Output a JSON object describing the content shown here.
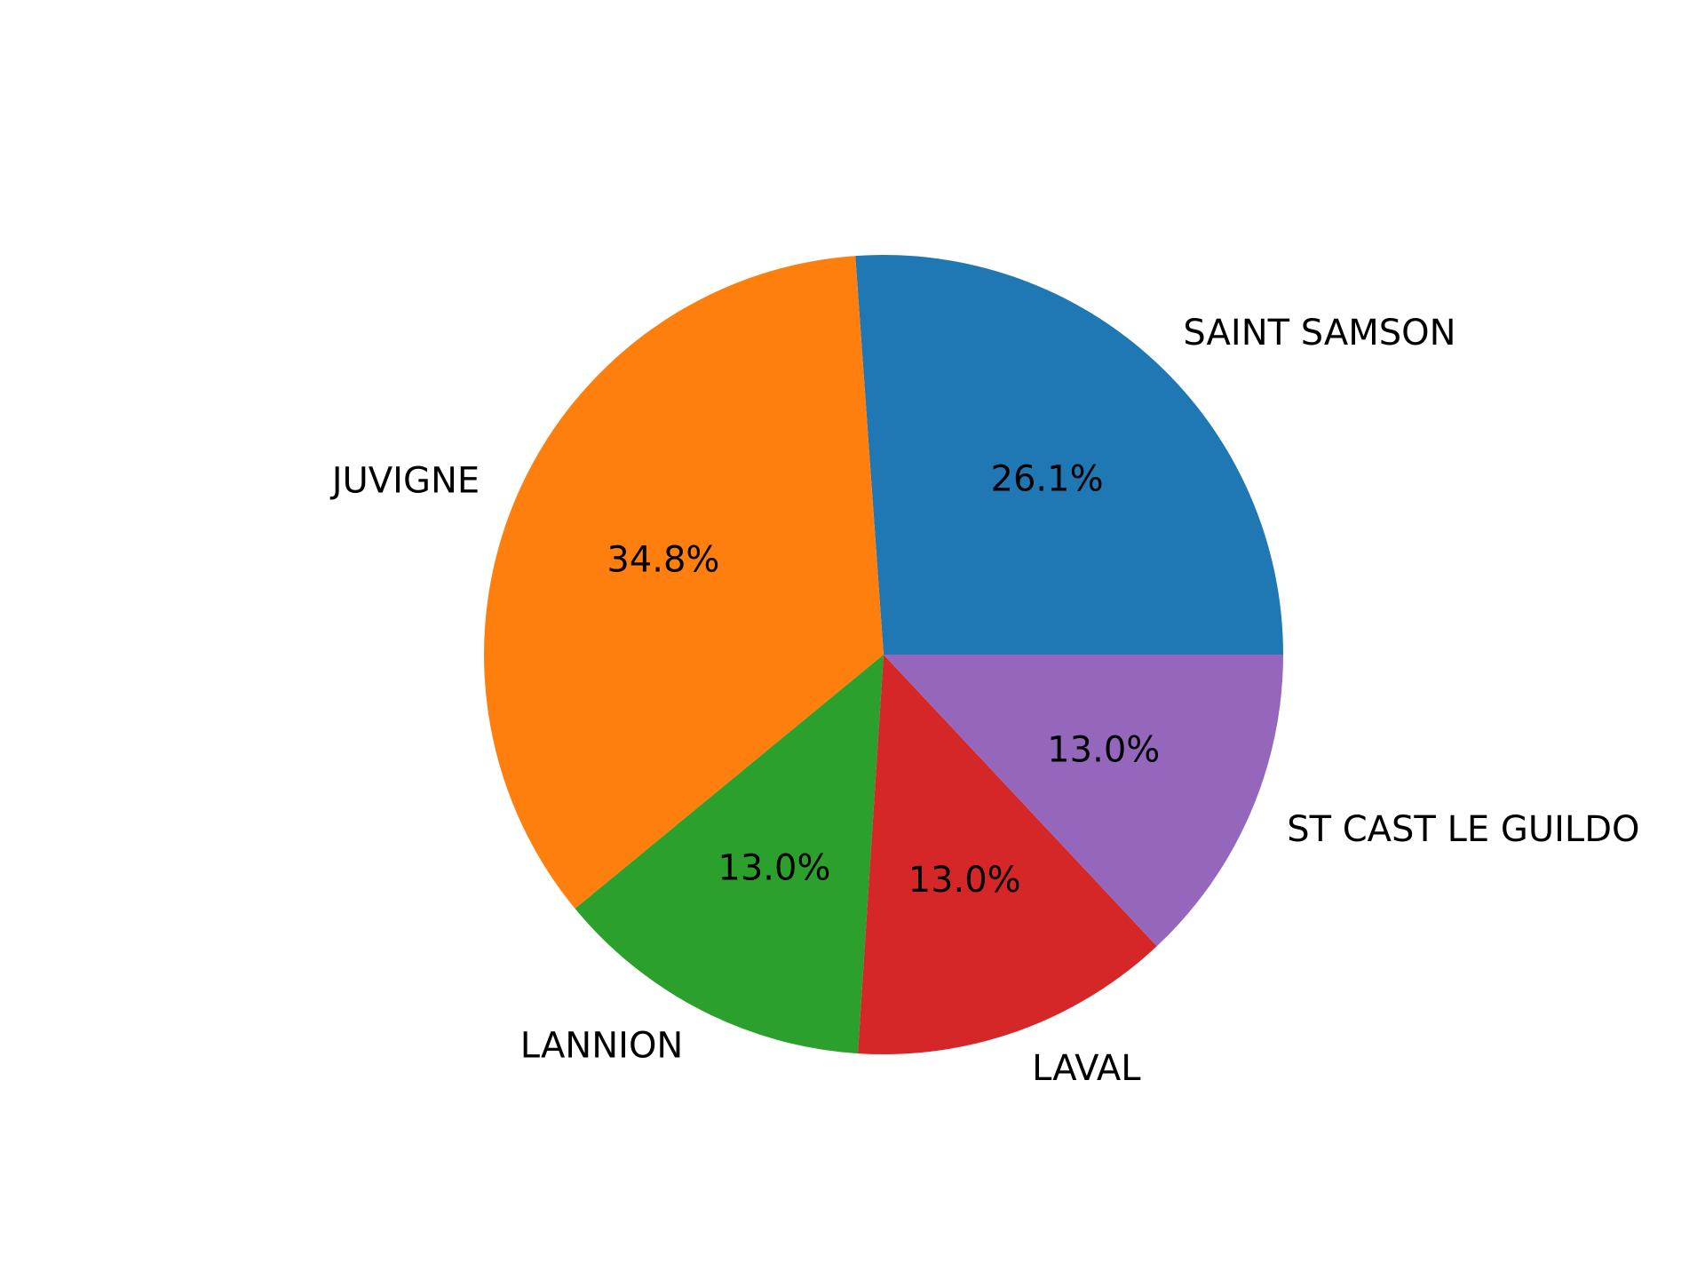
{
  "chart_data": {
    "type": "pie",
    "title": "",
    "start_angle_deg": 0,
    "direction": "counterclockwise",
    "slices": [
      {
        "label": "SAINT SAMSON",
        "percent_label": "26.1%",
        "value": 26.1,
        "color": "#1f77b4"
      },
      {
        "label": "JUVIGNE",
        "percent_label": "34.8%",
        "value": 34.8,
        "color": "#ff7f0e"
      },
      {
        "label": "LANNION",
        "percent_label": "13.0%",
        "value": 13.0,
        "color": "#2ca02c"
      },
      {
        "label": "LAVAL",
        "percent_label": "13.0%",
        "value": 13.0,
        "color": "#d62728"
      },
      {
        "label": "ST CAST LE GUILDO",
        "percent_label": "13.0%",
        "value": 13.0,
        "color": "#9467bd"
      }
    ]
  }
}
